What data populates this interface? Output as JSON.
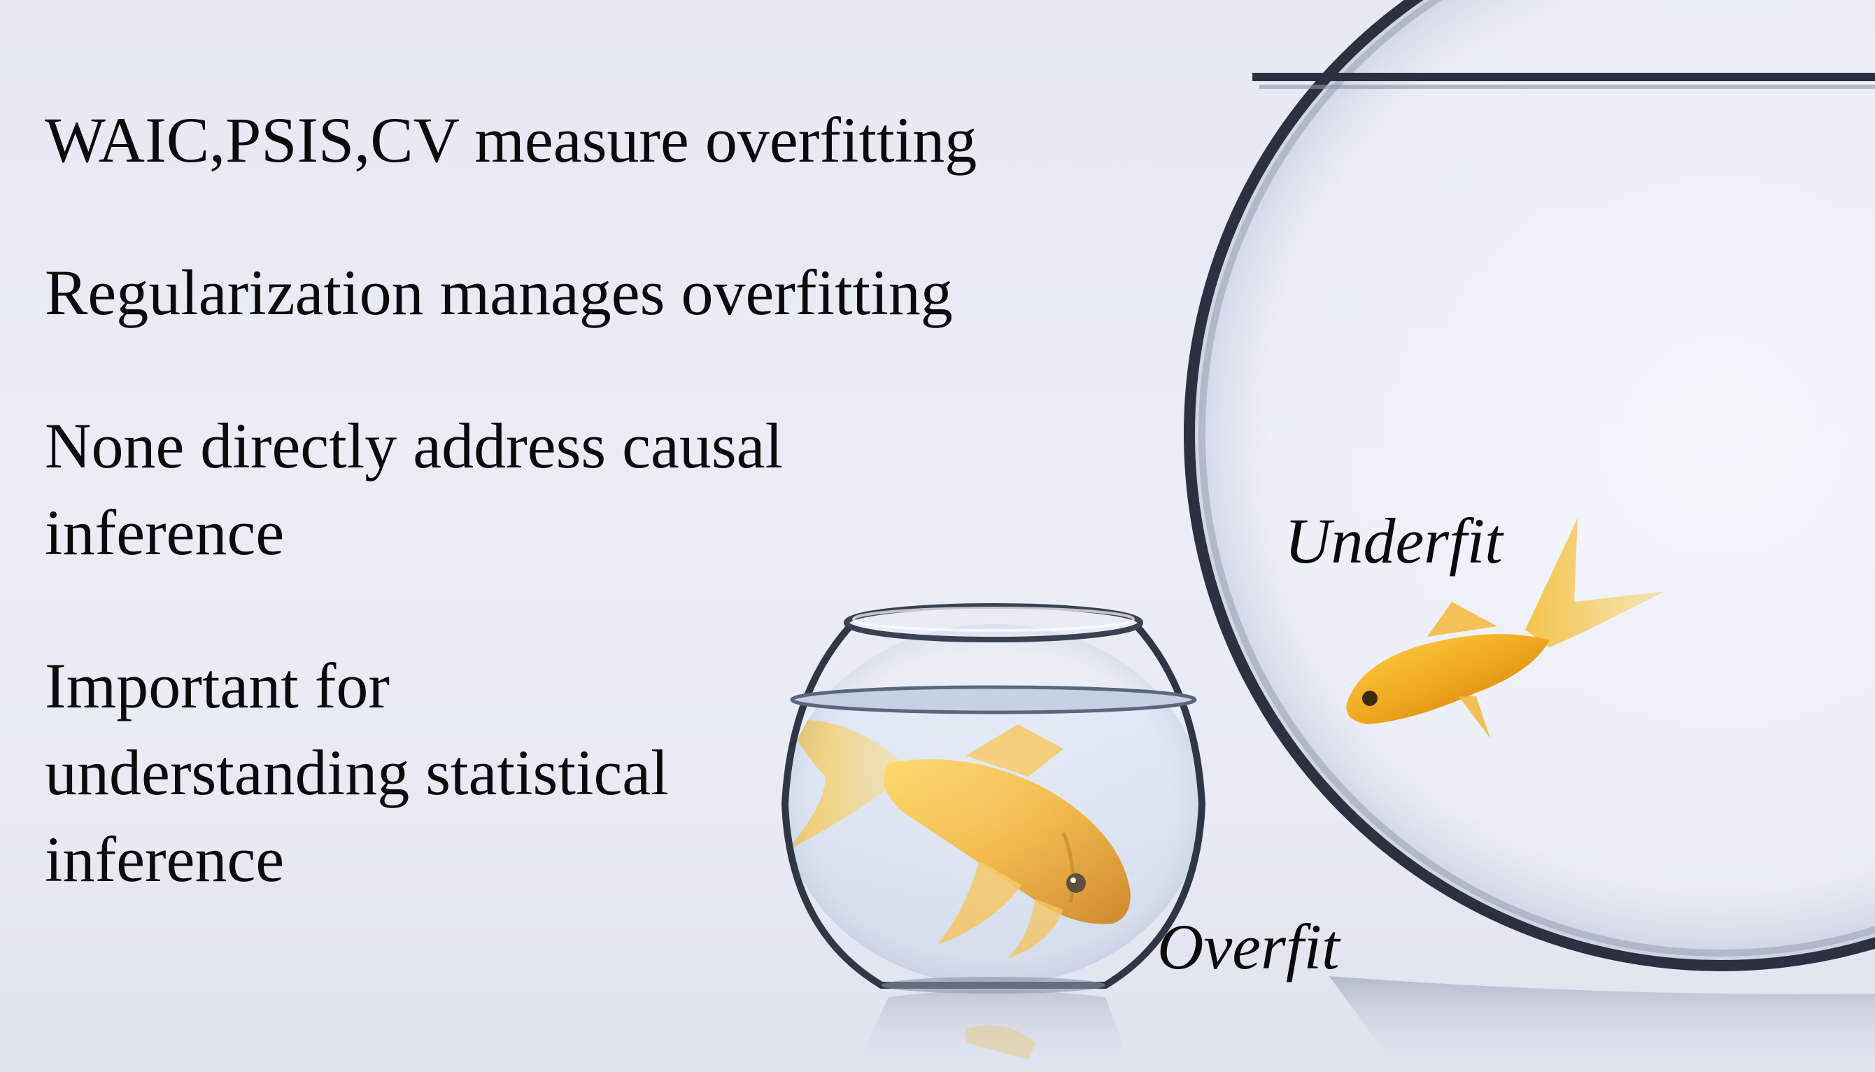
{
  "slide": {
    "bullets": [
      "WAIC,PSIS,CV measure overfitting",
      "Regularization manages overfitting",
      "None directly address causal inference",
      "Important for understanding statistical inference"
    ],
    "labels": {
      "underfit": "Underfit",
      "overfit": "Overfit"
    }
  },
  "colors": {
    "background": "#e8ebf4",
    "text": "#0b0b0b",
    "goldfish": "#f0b225",
    "goldfish_dark": "#c97f0a"
  },
  "icons": [
    "large-fishbowl",
    "small-fishbowl",
    "goldfish"
  ]
}
